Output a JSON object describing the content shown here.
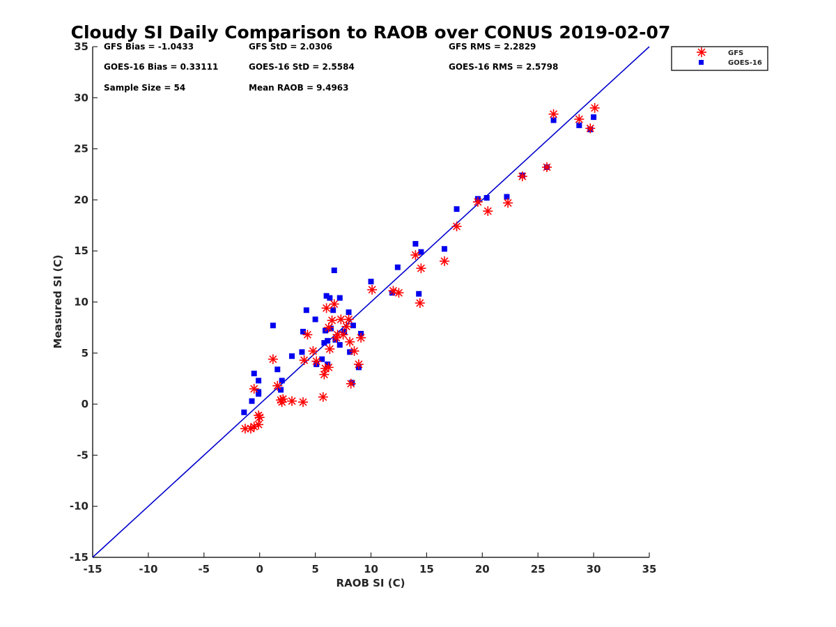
{
  "chart_data": {
    "type": "scatter",
    "title": "Cloudy SI Daily Comparison to RAOB over CONUS 2019-02-07",
    "xlabel": "RAOB SI (C)",
    "ylabel": "Measured SI (C)",
    "xlim": [
      -15,
      35
    ],
    "ylim": [
      -15,
      35
    ],
    "xticks": [
      -15,
      -10,
      -5,
      0,
      5,
      10,
      15,
      20,
      25,
      30,
      35
    ],
    "yticks": [
      -15,
      -10,
      -5,
      0,
      5,
      10,
      15,
      20,
      25,
      30,
      35
    ],
    "grid": false,
    "legend_position": "outside top-right",
    "reference_line": {
      "from": [
        -15,
        -15
      ],
      "to": [
        35,
        35
      ],
      "color": "#0000cc"
    },
    "stats": {
      "gfs_bias": "GFS Bias = -1.0433",
      "gfs_std": "GFS StD = 2.0306",
      "gfs_rms": "GFS RMS = 2.2829",
      "goes_bias": "GOES-16 Bias = 0.33111",
      "goes_std": "GOES-16 StD = 2.5584",
      "goes_rms": "GOES-16 RMS = 2.5798",
      "sample_size": "Sample Size = 54",
      "mean_raob": "Mean RAOB = 9.4963"
    },
    "series": [
      {
        "name": "GFS",
        "marker": "asterisk",
        "color": "#ff0000",
        "points": [
          [
            -1.3,
            -2.4
          ],
          [
            -0.8,
            -2.4
          ],
          [
            -0.5,
            -2.2
          ],
          [
            -0.1,
            -2.0
          ],
          [
            -0.1,
            -1.1
          ],
          [
            0.0,
            -1.3
          ],
          [
            -0.5,
            1.5
          ],
          [
            1.2,
            4.4
          ],
          [
            1.6,
            1.8
          ],
          [
            1.9,
            0.4
          ],
          [
            2.0,
            0.2
          ],
          [
            2.1,
            0.5
          ],
          [
            2.9,
            0.3
          ],
          [
            3.9,
            0.2
          ],
          [
            4.0,
            4.3
          ],
          [
            4.3,
            6.8
          ],
          [
            4.8,
            5.2
          ],
          [
            5.1,
            4.2
          ],
          [
            5.7,
            0.7
          ],
          [
            5.8,
            2.9
          ],
          [
            5.9,
            3.5
          ],
          [
            6.0,
            9.4
          ],
          [
            6.2,
            7.5
          ],
          [
            6.2,
            3.6
          ],
          [
            6.3,
            5.4
          ],
          [
            6.5,
            8.2
          ],
          [
            6.7,
            9.8
          ],
          [
            6.9,
            6.5
          ],
          [
            7.0,
            6.8
          ],
          [
            7.3,
            8.3
          ],
          [
            7.5,
            6.8
          ],
          [
            7.8,
            7.6
          ],
          [
            8.0,
            8.3
          ],
          [
            8.1,
            6.1
          ],
          [
            8.2,
            2.0
          ],
          [
            8.5,
            5.2
          ],
          [
            8.9,
            3.9
          ],
          [
            9.1,
            6.5
          ],
          [
            10.1,
            11.2
          ],
          [
            12.0,
            11.1
          ],
          [
            12.5,
            10.9
          ],
          [
            14.0,
            14.6
          ],
          [
            14.4,
            9.9
          ],
          [
            14.5,
            13.3
          ],
          [
            16.6,
            14.0
          ],
          [
            17.7,
            17.4
          ],
          [
            19.6,
            19.8
          ],
          [
            20.5,
            18.9
          ],
          [
            22.3,
            19.7
          ],
          [
            23.6,
            22.3
          ],
          [
            25.8,
            23.2
          ],
          [
            26.4,
            28.4
          ],
          [
            28.7,
            27.9
          ],
          [
            29.7,
            27.0
          ],
          [
            30.1,
            29.0
          ]
        ]
      },
      {
        "name": "GOES-16",
        "marker": "square",
        "color": "#0000ee",
        "points": [
          [
            -1.4,
            -0.8
          ],
          [
            -0.7,
            0.3
          ],
          [
            -0.5,
            3.0
          ],
          [
            -0.1,
            2.3
          ],
          [
            -0.1,
            1.2
          ],
          [
            -0.1,
            1.0
          ],
          [
            1.2,
            7.7
          ],
          [
            1.6,
            3.4
          ],
          [
            1.9,
            1.4
          ],
          [
            2.0,
            2.3
          ],
          [
            2.9,
            4.7
          ],
          [
            3.8,
            5.1
          ],
          [
            3.9,
            7.1
          ],
          [
            4.2,
            9.2
          ],
          [
            5.0,
            8.3
          ],
          [
            5.1,
            3.9
          ],
          [
            5.6,
            4.4
          ],
          [
            5.8,
            6.0
          ],
          [
            5.9,
            7.2
          ],
          [
            6.0,
            10.6
          ],
          [
            6.1,
            3.9
          ],
          [
            6.1,
            6.2
          ],
          [
            6.3,
            10.4
          ],
          [
            6.4,
            7.4
          ],
          [
            6.6,
            9.2
          ],
          [
            6.7,
            13.1
          ],
          [
            6.8,
            6.3
          ],
          [
            7.2,
            10.4
          ],
          [
            7.2,
            5.8
          ],
          [
            7.6,
            7.1
          ],
          [
            8.0,
            9.0
          ],
          [
            8.1,
            5.1
          ],
          [
            8.3,
            2.1
          ],
          [
            8.4,
            7.7
          ],
          [
            8.9,
            3.6
          ],
          [
            9.1,
            6.9
          ],
          [
            10.0,
            12.0
          ],
          [
            11.9,
            10.9
          ],
          [
            12.4,
            13.4
          ],
          [
            14.0,
            15.7
          ],
          [
            14.3,
            10.8
          ],
          [
            14.5,
            14.9
          ],
          [
            16.6,
            15.2
          ],
          [
            17.7,
            19.1
          ],
          [
            19.6,
            20.1
          ],
          [
            20.4,
            20.2
          ],
          [
            22.2,
            20.3
          ],
          [
            23.6,
            22.4
          ],
          [
            25.8,
            23.2
          ],
          [
            26.4,
            27.8
          ],
          [
            28.7,
            27.3
          ],
          [
            29.7,
            26.9
          ],
          [
            30.0,
            28.1
          ]
        ]
      }
    ]
  }
}
